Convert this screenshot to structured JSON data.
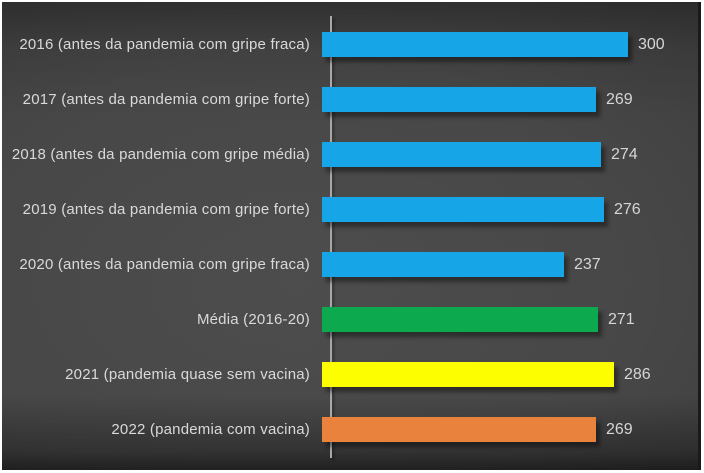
{
  "chart": {
    "background_center_color": "#4d4d4d",
    "background_edge_color": "#262626",
    "frame_border_color": "#ffffff",
    "axis_line_color": "#a8a8a8",
    "category_label_color": "#d9d9d9",
    "value_label_color": "#d6d6d6"
  },
  "chart_data": {
    "type": "bar",
    "orientation": "horizontal",
    "title": "",
    "xlabel": "",
    "ylabel": "",
    "grid": false,
    "legend": null,
    "value_axis_range_estimated": [
      0,
      350
    ],
    "value_labels_shown": true,
    "categories": [
      "2016 (antes da pandemia com gripe fraca)",
      "2017 (antes da pandemia com gripe forte)",
      "2018 (antes da pandemia com gripe média)",
      "2019 (antes da pandemia com gripe forte)",
      "2020 (antes da pandemia com gripe fraca)",
      "Média (2016-20)",
      "2021 (pandemia quase sem vacina)",
      "2022 (pandemia com vacina)"
    ],
    "values": [
      300,
      269,
      274,
      276,
      237,
      271,
      286,
      269
    ],
    "bar_colors": [
      "#16a5e6",
      "#16a5e6",
      "#16a5e6",
      "#16a5e6",
      "#16a5e6",
      "#0ca94f",
      "#fdff00",
      "#e8823c"
    ]
  }
}
